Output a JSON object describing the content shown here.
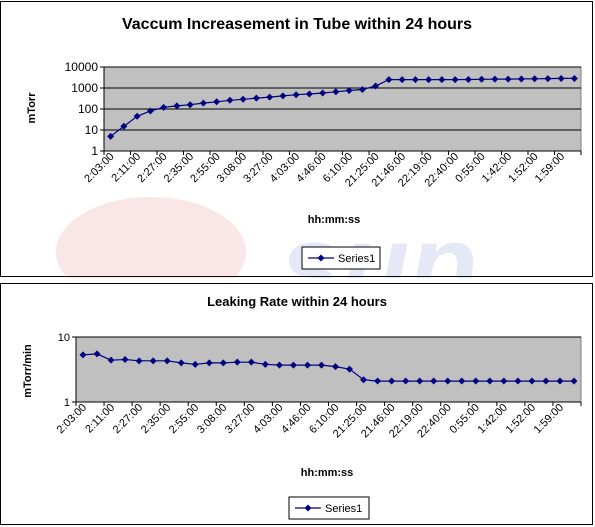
{
  "chart_data": [
    {
      "type": "line",
      "title": "Vaccum Increasement in Tube within 24 hours",
      "xlabel": "hh:mm:ss",
      "ylabel": "mTorr",
      "yscale": "log",
      "ylim": [
        1,
        10000
      ],
      "yticks": [
        "1",
        "10",
        "100",
        "1000",
        "10000"
      ],
      "grid": true,
      "legend": "bottom",
      "plot_bg": "#c0c0c0",
      "line_color": "#000080",
      "x_tick_labels": [
        "2:03:00",
        "2:11:00",
        "2:27:00",
        "2:35:00",
        "2:55:00",
        "3:08:00",
        "3:27:00",
        "4:03:00",
        "4:46:00",
        "6:10:00",
        "21:25:00",
        "21:46:00",
        "22:19:00",
        "22:40:00",
        "0:55:00",
        "1:42:00",
        "1:52:00",
        "1:59:00"
      ],
      "series": [
        {
          "name": "Series1",
          "values": [
            5,
            15,
            45,
            80,
            120,
            140,
            160,
            190,
            220,
            260,
            290,
            330,
            370,
            420,
            480,
            520,
            580,
            660,
            760,
            850,
            1250,
            2500,
            2500,
            2500,
            2500,
            2500,
            2500,
            2550,
            2600,
            2650,
            2650,
            2700,
            2750,
            2800,
            2850,
            2850
          ]
        }
      ]
    },
    {
      "type": "line",
      "title": "Leaking Rate within 24 hours",
      "xlabel": "hh:mm:ss",
      "ylabel": "mTorr/min",
      "yscale": "log",
      "ylim": [
        1,
        10
      ],
      "yticks": [
        "1",
        "10"
      ],
      "grid": true,
      "legend": "bottom",
      "plot_bg": "#c0c0c0",
      "line_color": "#000080",
      "x_tick_labels": [
        "2:03:00",
        "2:11:00",
        "2:27:00",
        "2:35:00",
        "2:55:00",
        "3:08:00",
        "3:27:00",
        "4:03:00",
        "4:46:00",
        "6:10:00",
        "21:25:00",
        "21:46:00",
        "22:19:00",
        "22:40:00",
        "0:55:00",
        "1:42:00",
        "1:52:00",
        "1:59:00"
      ],
      "series": [
        {
          "name": "Series1",
          "values": [
            5.3,
            5.5,
            4.4,
            4.5,
            4.3,
            4.3,
            4.3,
            4.0,
            3.8,
            4.0,
            4.0,
            4.1,
            4.1,
            3.8,
            3.7,
            3.7,
            3.7,
            3.7,
            3.5,
            3.2,
            2.2,
            2.1,
            2.1,
            2.1,
            2.1,
            2.1,
            2.1,
            2.1,
            2.1,
            2.1,
            2.1,
            2.1,
            2.1,
            2.1,
            2.1,
            2.1
          ]
        }
      ]
    }
  ]
}
